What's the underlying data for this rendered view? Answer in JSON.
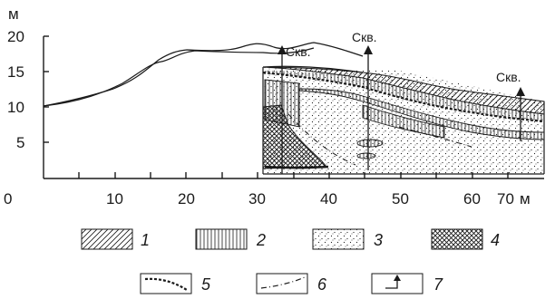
{
  "yaxis": {
    "unit": "м",
    "ticks": [
      "20",
      "15",
      "10",
      "5"
    ]
  },
  "xaxis": {
    "ticks": [
      "0",
      "10",
      "20",
      "30",
      "40",
      "50",
      "60",
      "70"
    ],
    "unit": "м"
  },
  "wells": [
    {
      "label": "Скв."
    },
    {
      "label": "Скв."
    },
    {
      "label": "Скв."
    }
  ],
  "legend": [
    {
      "num": "1",
      "pattern": "diagonal-hatch"
    },
    {
      "num": "2",
      "pattern": "vertical-hatch"
    },
    {
      "num": "3",
      "pattern": "dots"
    },
    {
      "num": "4",
      "pattern": "cross-hatch"
    },
    {
      "num": "5",
      "pattern": "toothed-line"
    },
    {
      "num": "6",
      "pattern": "dash-dot-line"
    },
    {
      "num": "7",
      "pattern": "well-arrow"
    }
  ],
  "colors": {
    "ink": "#1a1a1a",
    "background": "#ffffff"
  }
}
